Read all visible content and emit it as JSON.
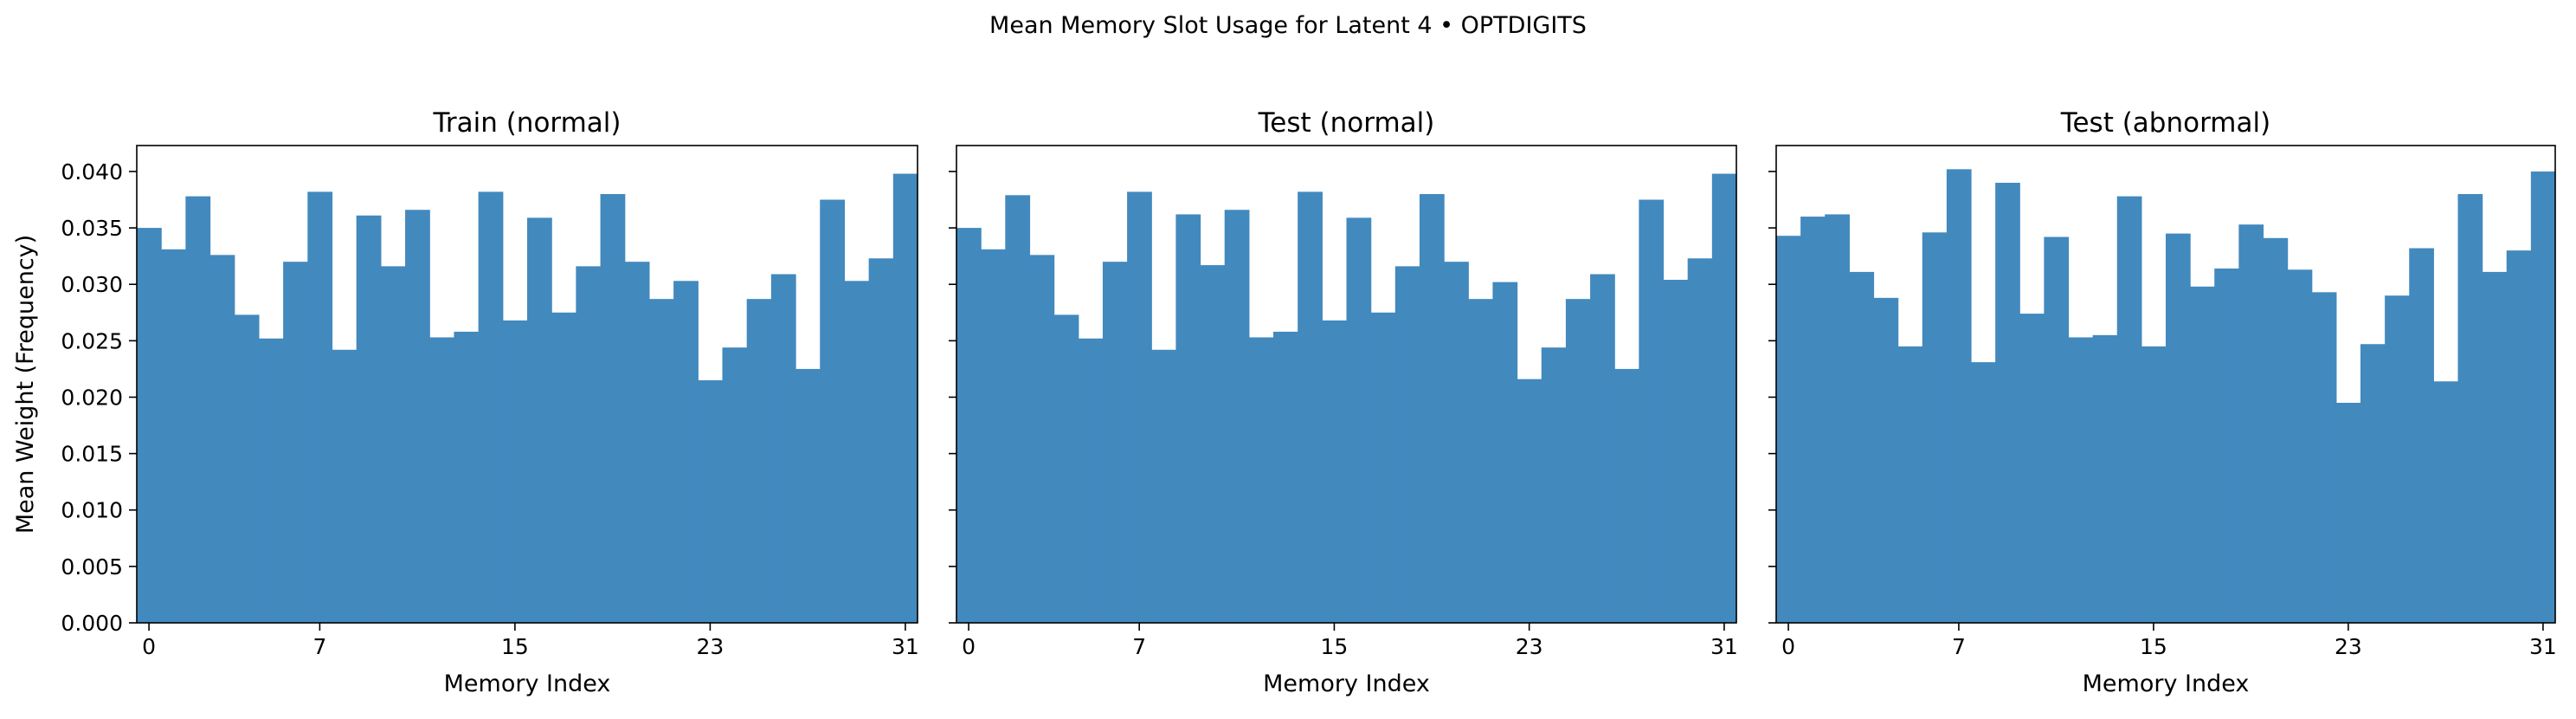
{
  "suptitle": "Mean Memory Slot Usage for Latent 4 • OPTDIGITS",
  "colors": {
    "bar": "#4289be",
    "axis": "#000000"
  },
  "chart_data": [
    {
      "type": "bar",
      "title": "Train (normal)",
      "xlabel": "Memory Index",
      "ylabel": "Mean Weight (Frequency)",
      "xticks": [
        0,
        7,
        15,
        23,
        31
      ],
      "yticks": [
        0.0,
        0.005,
        0.01,
        0.015,
        0.02,
        0.025,
        0.03,
        0.035,
        0.04
      ],
      "ylim": [
        0,
        0.0423
      ],
      "x": [
        0,
        1,
        2,
        3,
        4,
        5,
        6,
        7,
        8,
        9,
        10,
        11,
        12,
        13,
        14,
        15,
        16,
        17,
        18,
        19,
        20,
        21,
        22,
        23,
        24,
        25,
        26,
        27,
        28,
        29,
        30,
        31
      ],
      "values": [
        0.035,
        0.0331,
        0.0378,
        0.0326,
        0.0273,
        0.0252,
        0.032,
        0.0382,
        0.0242,
        0.0361,
        0.0316,
        0.0366,
        0.0253,
        0.0258,
        0.0382,
        0.0268,
        0.0359,
        0.0275,
        0.0316,
        0.038,
        0.032,
        0.0287,
        0.0303,
        0.0215,
        0.0244,
        0.0287,
        0.0309,
        0.0225,
        0.0375,
        0.0303,
        0.0323,
        0.0398
      ],
      "grid": false
    },
    {
      "type": "bar",
      "title": "Test (normal)",
      "xlabel": "Memory Index",
      "xticks": [
        0,
        7,
        15,
        23,
        31
      ],
      "ylim": [
        0,
        0.0423
      ],
      "x": [
        0,
        1,
        2,
        3,
        4,
        5,
        6,
        7,
        8,
        9,
        10,
        11,
        12,
        13,
        14,
        15,
        16,
        17,
        18,
        19,
        20,
        21,
        22,
        23,
        24,
        25,
        26,
        27,
        28,
        29,
        30,
        31
      ],
      "values": [
        0.035,
        0.0331,
        0.0379,
        0.0326,
        0.0273,
        0.0252,
        0.032,
        0.0382,
        0.0242,
        0.0362,
        0.0317,
        0.0366,
        0.0253,
        0.0258,
        0.0382,
        0.0268,
        0.0359,
        0.0275,
        0.0316,
        0.038,
        0.032,
        0.0287,
        0.0302,
        0.0216,
        0.0244,
        0.0287,
        0.0309,
        0.0225,
        0.0375,
        0.0304,
        0.0323,
        0.0398
      ],
      "grid": false
    },
    {
      "type": "bar",
      "title": "Test (abnormal)",
      "xlabel": "Memory Index",
      "xticks": [
        0,
        7,
        15,
        23,
        31
      ],
      "ylim": [
        0,
        0.0423
      ],
      "x": [
        0,
        1,
        2,
        3,
        4,
        5,
        6,
        7,
        8,
        9,
        10,
        11,
        12,
        13,
        14,
        15,
        16,
        17,
        18,
        19,
        20,
        21,
        22,
        23,
        24,
        25,
        26,
        27,
        28,
        29,
        30,
        31
      ],
      "values": [
        0.0343,
        0.036,
        0.0362,
        0.0311,
        0.0288,
        0.0245,
        0.0346,
        0.0402,
        0.0231,
        0.039,
        0.0274,
        0.0342,
        0.0253,
        0.0255,
        0.0378,
        0.0245,
        0.0345,
        0.0298,
        0.0314,
        0.0353,
        0.0341,
        0.0313,
        0.0293,
        0.0195,
        0.0247,
        0.029,
        0.0332,
        0.0214,
        0.038,
        0.0311,
        0.033,
        0.04
      ],
      "grid": false
    }
  ]
}
